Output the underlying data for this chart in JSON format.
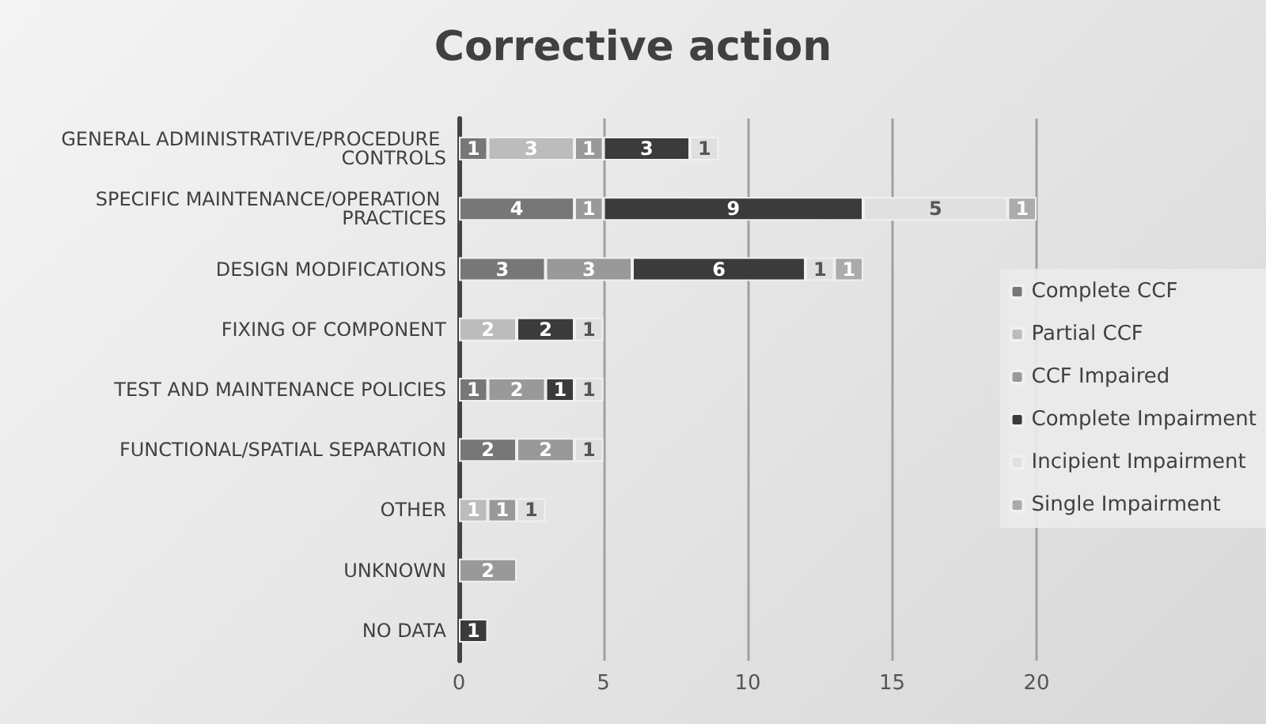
{
  "chart_data": {
    "type": "bar",
    "orientation": "horizontal",
    "stacked": true,
    "title": "Corrective action",
    "categories": [
      "GENERAL ADMINISTRATIVE/PROCEDURE CONTROLS",
      "SPECIFIC MAINTENANCE/OPERATION PRACTICES",
      "DESIGN MODIFICATIONS",
      "FIXING OF COMPONENT",
      "TEST AND MAINTENANCE POLICIES",
      "FUNCTIONAL/SPATIAL SEPARATION",
      "OTHER",
      "UNKNOWN",
      "NO DATA"
    ],
    "series": [
      {
        "name": "Complete CCF",
        "color": "#777777",
        "values": [
          1,
          4,
          3,
          null,
          1,
          2,
          null,
          null,
          null
        ]
      },
      {
        "name": "Partial CCF",
        "color": "#bcbcbc",
        "values": [
          3,
          null,
          null,
          2,
          null,
          null,
          1,
          null,
          null
        ]
      },
      {
        "name": "CCF Impaired",
        "color": "#999999",
        "values": [
          1,
          1,
          3,
          null,
          2,
          2,
          1,
          2,
          null
        ]
      },
      {
        "name": "Complete Impairment",
        "color": "#3b3b3b",
        "values": [
          3,
          9,
          6,
          2,
          1,
          null,
          null,
          null,
          1
        ]
      },
      {
        "name": "Incipient Impairment",
        "color": "#e0e0e0",
        "values": [
          1,
          5,
          1,
          1,
          1,
          1,
          1,
          null,
          null
        ]
      },
      {
        "name": "Single Impairment",
        "color": "#ababab",
        "values": [
          null,
          1,
          1,
          null,
          null,
          null,
          null,
          null,
          null
        ]
      }
    ],
    "xlim": [
      0,
      20
    ],
    "xticks": [
      0,
      5,
      10,
      15,
      20
    ],
    "grid": "x",
    "legend": "right",
    "data_labels": true
  }
}
